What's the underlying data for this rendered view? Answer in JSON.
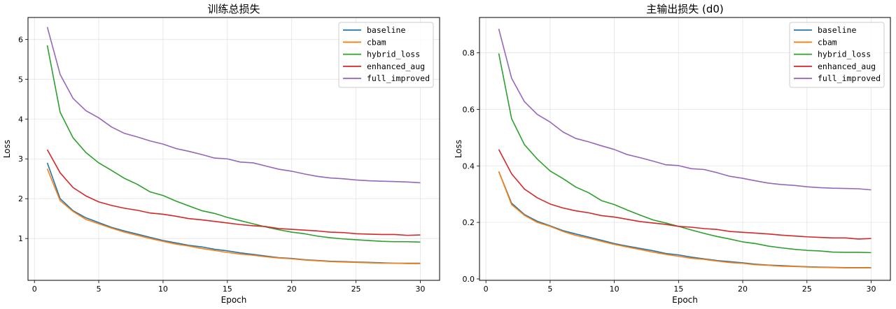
{
  "chart_data": [
    {
      "type": "line",
      "title": "训练总损失",
      "xlabel": "Epoch",
      "ylabel": "Loss",
      "xlim": [
        -0.5,
        31.5
      ],
      "ylim": [
        -0.05,
        6.55
      ],
      "xticks": [
        0,
        5,
        10,
        15,
        20,
        25,
        30
      ],
      "yticks": [
        1,
        2,
        3,
        4,
        5,
        6
      ],
      "grid": true,
      "legend_position": "top-right",
      "x": [
        1,
        2,
        3,
        4,
        5,
        6,
        7,
        8,
        9,
        10,
        11,
        12,
        13,
        14,
        15,
        16,
        17,
        18,
        19,
        20,
        21,
        22,
        23,
        24,
        25,
        26,
        27,
        28,
        29,
        30
      ],
      "series": [
        {
          "name": "baseline",
          "color": "#1f77b4",
          "values": [
            2.9,
            2.0,
            1.7,
            1.52,
            1.4,
            1.28,
            1.19,
            1.11,
            1.03,
            0.95,
            0.89,
            0.83,
            0.79,
            0.73,
            0.69,
            0.64,
            0.6,
            0.56,
            0.52,
            0.5,
            0.47,
            0.45,
            0.43,
            0.42,
            0.41,
            0.4,
            0.39,
            0.38,
            0.38,
            0.38
          ]
        },
        {
          "name": "cbam",
          "color": "#ff7f0e",
          "values": [
            2.75,
            1.95,
            1.68,
            1.48,
            1.37,
            1.26,
            1.16,
            1.08,
            1.0,
            0.93,
            0.86,
            0.81,
            0.75,
            0.7,
            0.65,
            0.61,
            0.58,
            0.54,
            0.51,
            0.49,
            0.46,
            0.44,
            0.42,
            0.41,
            0.4,
            0.39,
            0.38,
            0.38,
            0.37,
            0.37
          ]
        },
        {
          "name": "hybrid_loss",
          "color": "#2ca02c",
          "values": [
            5.85,
            4.17,
            3.53,
            3.16,
            2.9,
            2.71,
            2.51,
            2.36,
            2.17,
            2.08,
            1.94,
            1.82,
            1.7,
            1.63,
            1.53,
            1.45,
            1.37,
            1.29,
            1.22,
            1.16,
            1.12,
            1.06,
            1.02,
            0.99,
            0.97,
            0.95,
            0.93,
            0.92,
            0.92,
            0.91
          ]
        },
        {
          "name": "enhanced_aug",
          "color": "#d62728",
          "values": [
            3.23,
            2.65,
            2.28,
            2.07,
            1.92,
            1.83,
            1.76,
            1.71,
            1.64,
            1.61,
            1.56,
            1.5,
            1.47,
            1.43,
            1.39,
            1.35,
            1.32,
            1.3,
            1.25,
            1.23,
            1.21,
            1.19,
            1.16,
            1.15,
            1.12,
            1.11,
            1.1,
            1.1,
            1.08,
            1.09
          ]
        },
        {
          "name": "full_improved",
          "color": "#9467bd",
          "values": [
            6.31,
            5.12,
            4.52,
            4.21,
            4.03,
            3.8,
            3.64,
            3.55,
            3.45,
            3.37,
            3.26,
            3.19,
            3.11,
            3.02,
            3.0,
            2.92,
            2.9,
            2.82,
            2.74,
            2.69,
            2.62,
            2.56,
            2.52,
            2.5,
            2.47,
            2.45,
            2.44,
            2.43,
            2.42,
            2.4
          ]
        }
      ]
    },
    {
      "type": "line",
      "title": "主输出损失 (d0)",
      "xlabel": "Epoch",
      "ylabel": "Loss",
      "xlim": [
        -0.5,
        31.5
      ],
      "ylim": [
        -0.005,
        0.925
      ],
      "xticks": [
        0,
        5,
        10,
        15,
        20,
        25,
        30
      ],
      "yticks": [
        0.0,
        0.2,
        0.4,
        0.6,
        0.8
      ],
      "grid": true,
      "legend_position": "top-right",
      "x": [
        1,
        2,
        3,
        4,
        5,
        6,
        7,
        8,
        9,
        10,
        11,
        12,
        13,
        14,
        15,
        16,
        17,
        18,
        19,
        20,
        21,
        22,
        23,
        24,
        25,
        26,
        27,
        28,
        29,
        30
      ],
      "series": [
        {
          "name": "baseline",
          "color": "#1f77b4",
          "values": [
            0.38,
            0.268,
            0.228,
            0.204,
            0.188,
            0.171,
            0.159,
            0.148,
            0.137,
            0.125,
            0.116,
            0.108,
            0.1,
            0.09,
            0.085,
            0.077,
            0.071,
            0.065,
            0.061,
            0.057,
            0.052,
            0.049,
            0.047,
            0.045,
            0.043,
            0.042,
            0.041,
            0.04,
            0.04,
            0.04
          ]
        },
        {
          "name": "cbam",
          "color": "#ff7f0e",
          "values": [
            0.38,
            0.263,
            0.225,
            0.2,
            0.186,
            0.168,
            0.154,
            0.144,
            0.133,
            0.122,
            0.113,
            0.104,
            0.095,
            0.087,
            0.08,
            0.073,
            0.069,
            0.063,
            0.058,
            0.055,
            0.05,
            0.048,
            0.045,
            0.044,
            0.042,
            0.041,
            0.04,
            0.039,
            0.039,
            0.039
          ]
        },
        {
          "name": "hybrid_loss",
          "color": "#2ca02c",
          "values": [
            0.798,
            0.567,
            0.475,
            0.424,
            0.382,
            0.355,
            0.325,
            0.305,
            0.277,
            0.263,
            0.244,
            0.226,
            0.209,
            0.198,
            0.186,
            0.173,
            0.161,
            0.15,
            0.141,
            0.131,
            0.125,
            0.116,
            0.11,
            0.105,
            0.101,
            0.099,
            0.095,
            0.094,
            0.094,
            0.093
          ]
        },
        {
          "name": "enhanced_aug",
          "color": "#d62728",
          "values": [
            0.458,
            0.372,
            0.318,
            0.287,
            0.265,
            0.251,
            0.241,
            0.234,
            0.224,
            0.219,
            0.211,
            0.203,
            0.198,
            0.193,
            0.186,
            0.183,
            0.178,
            0.175,
            0.168,
            0.165,
            0.162,
            0.159,
            0.155,
            0.152,
            0.149,
            0.147,
            0.145,
            0.145,
            0.141,
            0.143
          ]
        },
        {
          "name": "full_improved",
          "color": "#9467bd",
          "values": [
            0.885,
            0.71,
            0.627,
            0.582,
            0.555,
            0.52,
            0.497,
            0.485,
            0.471,
            0.458,
            0.44,
            0.429,
            0.417,
            0.404,
            0.401,
            0.39,
            0.387,
            0.376,
            0.363,
            0.356,
            0.347,
            0.339,
            0.334,
            0.331,
            0.326,
            0.323,
            0.321,
            0.32,
            0.319,
            0.315
          ]
        }
      ]
    }
  ]
}
